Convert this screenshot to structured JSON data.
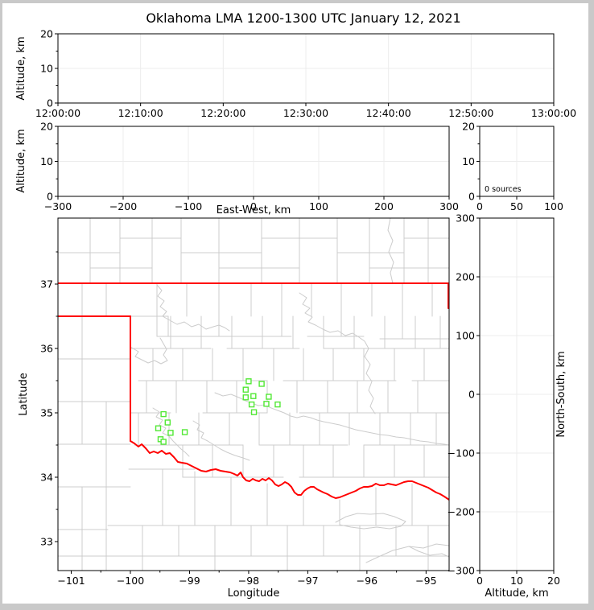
{
  "figure": {
    "title": "Oklahoma LMA 1200-1300 UTC January 12, 2021",
    "background": "#ffffff",
    "frame_color": "#c9c9c9"
  },
  "colors": {
    "state_border": "#ff0000",
    "county_line": "#cccccc",
    "river_line": "#cccccc",
    "station": "#52e835",
    "grid": "#ececec",
    "axis": "#000000"
  },
  "chart_data": [
    {
      "id": "time_height",
      "type": "scatter",
      "xlabel": "",
      "ylabel": "Altitude, km",
      "x_tick_labels": [
        "12:00:00",
        "12:10:00",
        "12:20:00",
        "12:30:00",
        "12:40:00",
        "12:50:00",
        "13:00:00"
      ],
      "ylim": [
        0,
        20
      ],
      "yticks": [
        0,
        10,
        20
      ],
      "points": []
    },
    {
      "id": "ew_height",
      "type": "scatter",
      "xlabel": "East-West, km",
      "ylabel": "Altitude, km",
      "xlim": [
        -300,
        300
      ],
      "xticks": [
        -300,
        -200,
        -100,
        0,
        100,
        200,
        300
      ],
      "ylim": [
        0,
        20
      ],
      "yticks": [
        0,
        10,
        20
      ],
      "points": []
    },
    {
      "id": "alt_histogram",
      "type": "line",
      "annotation": "0 sources",
      "xlim": [
        0,
        100
      ],
      "xticks": [
        0,
        50,
        100
      ],
      "ylim": [
        0,
        20
      ],
      "yticks": [
        0,
        10,
        20
      ],
      "points": []
    },
    {
      "id": "plan_map",
      "type": "scatter",
      "xlabel": "Longitude",
      "ylabel": "Latitude",
      "xlim": [
        -101.225,
        -94.61
      ],
      "xticks": [
        -101,
        -100,
        -99,
        -98,
        -97,
        -96,
        -95
      ],
      "ylim": [
        32.55,
        38.025
      ],
      "yticks": [
        33,
        34,
        35,
        36,
        37
      ],
      "stations_lonlat": [
        [
          -98.0,
          35.49
        ],
        [
          -97.78,
          35.45
        ],
        [
          -98.05,
          35.36
        ],
        [
          -97.92,
          35.26
        ],
        [
          -98.05,
          35.24
        ],
        [
          -97.66,
          35.25
        ],
        [
          -97.95,
          35.13
        ],
        [
          -97.7,
          35.14
        ],
        [
          -97.51,
          35.13
        ],
        [
          -97.91,
          35.01
        ],
        [
          -99.44,
          34.98
        ],
        [
          -99.37,
          34.85
        ],
        [
          -99.53,
          34.76
        ],
        [
          -99.32,
          34.69
        ],
        [
          -99.08,
          34.7
        ],
        [
          -99.49,
          34.59
        ],
        [
          -99.44,
          34.55
        ]
      ]
    },
    {
      "id": "ns_height",
      "type": "scatter",
      "xlabel": "Altitude, km",
      "ylabel": "North-South, km",
      "xlim": [
        0,
        20
      ],
      "xticks": [
        0,
        10,
        20
      ],
      "ylim": [
        -300,
        300
      ],
      "yticks": [
        -300,
        -200,
        -100,
        0,
        100,
        200,
        300
      ],
      "points": []
    }
  ],
  "map_geometry": {
    "state_border": [
      [
        0,
        81,
        486,
        81
      ],
      [
        485,
        81,
        485,
        112
      ],
      [
        0,
        122,
        90,
        122
      ],
      [
        90,
        122,
        90,
        277
      ]
    ],
    "red_river": [
      90,
      277,
      95,
      280,
      100,
      284,
      104,
      281,
      109,
      286,
      114,
      292,
      119,
      290,
      124,
      292,
      129,
      289,
      134,
      293,
      139,
      292,
      144,
      297,
      149,
      303,
      154,
      304,
      160,
      305,
      166,
      308,
      172,
      311,
      178,
      314,
      184,
      315,
      190,
      313,
      196,
      312,
      202,
      314,
      208,
      315,
      214,
      316,
      219,
      318,
      223,
      320,
      227,
      316,
      230,
      322,
      234,
      326,
      238,
      327,
      242,
      324,
      246,
      326,
      250,
      327,
      254,
      324,
      258,
      326,
      262,
      323,
      266,
      326,
      270,
      331,
      274,
      333,
      278,
      331,
      282,
      328,
      286,
      330,
      290,
      334,
      294,
      341,
      298,
      344,
      302,
      344,
      306,
      339,
      310,
      336,
      314,
      334,
      318,
      334,
      322,
      337,
      326,
      339,
      330,
      341,
      335,
      343,
      340,
      346,
      345,
      348,
      350,
      347,
      355,
      345,
      360,
      343,
      365,
      341,
      370,
      339,
      375,
      336,
      380,
      334,
      385,
      334,
      390,
      333,
      395,
      330,
      400,
      332,
      405,
      332,
      410,
      330,
      415,
      331,
      420,
      332,
      425,
      330,
      430,
      328,
      435,
      327,
      440,
      327,
      445,
      329,
      450,
      331,
      455,
      333,
      460,
      335,
      465,
      338,
      470,
      341,
      475,
      343,
      480,
      346,
      486,
      350
    ],
    "counties": [
      [
        40,
        0,
        40,
        81
      ],
      [
        77,
        0,
        77,
        81
      ],
      [
        117,
        0,
        117,
        81
      ],
      [
        153,
        0,
        153,
        81
      ],
      [
        200,
        0,
        200,
        81
      ],
      [
        253,
        0,
        253,
        81
      ],
      [
        300,
        0,
        300,
        81
      ],
      [
        347,
        0,
        347,
        81
      ],
      [
        387,
        0,
        387,
        81
      ],
      [
        430,
        0,
        430,
        81
      ],
      [
        460,
        0,
        460,
        81
      ],
      [
        77,
        25,
        153,
        25
      ],
      [
        253,
        25,
        347,
        25
      ],
      [
        430,
        25,
        486,
        25
      ],
      [
        0,
        43,
        77,
        43
      ],
      [
        153,
        43,
        253,
        43
      ],
      [
        347,
        43,
        430,
        43
      ],
      [
        40,
        62,
        117,
        62
      ],
      [
        200,
        62,
        300,
        62
      ],
      [
        387,
        62,
        486,
        62
      ],
      [
        413,
        0,
        410,
        15,
        416,
        28,
        411,
        42,
        417,
        55,
        413,
        68,
        416,
        81
      ],
      [
        30,
        81,
        30,
        122
      ],
      [
        60,
        81,
        60,
        122
      ],
      [
        30,
        122,
        30,
        281
      ],
      [
        60,
        228,
        60,
        438
      ],
      [
        30,
        334,
        30,
        438
      ],
      [
        0,
        175,
        90,
        175
      ],
      [
        0,
        228,
        90,
        228
      ],
      [
        0,
        281,
        90,
        281
      ],
      [
        0,
        334,
        90,
        334
      ],
      [
        0,
        387,
        62,
        387
      ],
      [
        0,
        420,
        90,
        420
      ],
      [
        90,
        122,
        137,
        122
      ],
      [
        137,
        122,
        137,
        147
      ],
      [
        123,
        147,
        290,
        147
      ],
      [
        310,
        147,
        380,
        147
      ],
      [
        400,
        150,
        486,
        150
      ],
      [
        90,
        162,
        190,
        162
      ],
      [
        210,
        162,
        300,
        162
      ],
      [
        330,
        162,
        486,
        162
      ],
      [
        100,
        202,
        260,
        202
      ],
      [
        280,
        202,
        420,
        202
      ],
      [
        440,
        202,
        486,
        202
      ],
      [
        90,
        242,
        140,
        242
      ],
      [
        180,
        242,
        260,
        242
      ],
      [
        300,
        242,
        486,
        242
      ],
      [
        95,
        282,
        230,
        282
      ],
      [
        250,
        282,
        360,
        282
      ],
      [
        380,
        282,
        486,
        282
      ],
      [
        155,
        322,
        280,
        322
      ],
      [
        300,
        322,
        486,
        322
      ],
      [
        123,
        81,
        123,
        147
      ],
      [
        160,
        81,
        160,
        122
      ],
      [
        200,
        81,
        200,
        147
      ],
      [
        240,
        81,
        240,
        122
      ],
      [
        278,
        81,
        278,
        147
      ],
      [
        315,
        81,
        315,
        122
      ],
      [
        352,
        81,
        352,
        147
      ],
      [
        390,
        81,
        390,
        122
      ],
      [
        428,
        81,
        428,
        150
      ],
      [
        465,
        81,
        465,
        122
      ],
      [
        140,
        122,
        140,
        162
      ],
      [
        178,
        122,
        178,
        162
      ],
      [
        216,
        122,
        216,
        162
      ],
      [
        254,
        122,
        254,
        162
      ],
      [
        292,
        122,
        292,
        162
      ],
      [
        330,
        122,
        330,
        162
      ],
      [
        368,
        122,
        368,
        162
      ],
      [
        406,
        122,
        406,
        162
      ],
      [
        444,
        122,
        444,
        162
      ],
      [
        475,
        122,
        475,
        162
      ],
      [
        118,
        162,
        118,
        202
      ],
      [
        155,
        162,
        155,
        202
      ],
      [
        192,
        162,
        192,
        202
      ],
      [
        230,
        162,
        230,
        202
      ],
      [
        268,
        162,
        268,
        202
      ],
      [
        305,
        162,
        305,
        202
      ],
      [
        342,
        162,
        342,
        202
      ],
      [
        380,
        162,
        380,
        202
      ],
      [
        418,
        162,
        418,
        202
      ],
      [
        455,
        162,
        455,
        202
      ],
      [
        110,
        202,
        110,
        242
      ],
      [
        147,
        202,
        147,
        242
      ],
      [
        185,
        202,
        185,
        242
      ],
      [
        222,
        202,
        222,
        242
      ],
      [
        260,
        202,
        260,
        242
      ],
      [
        297,
        202,
        297,
        242
      ],
      [
        335,
        202,
        335,
        242
      ],
      [
        372,
        202,
        372,
        242
      ],
      [
        410,
        202,
        410,
        242
      ],
      [
        447,
        202,
        447,
        242
      ],
      [
        100,
        242,
        100,
        282
      ],
      [
        138,
        242,
        138,
        282
      ],
      [
        175,
        242,
        175,
        282
      ],
      [
        213,
        242,
        213,
        282
      ],
      [
        250,
        242,
        250,
        282
      ],
      [
        288,
        242,
        288,
        282
      ],
      [
        325,
        242,
        325,
        282
      ],
      [
        362,
        242,
        362,
        282
      ],
      [
        400,
        242,
        400,
        282
      ],
      [
        438,
        242,
        438,
        282
      ],
      [
        470,
        242,
        470,
        282
      ],
      [
        155,
        282,
        155,
        322
      ],
      [
        192,
        282,
        192,
        322
      ],
      [
        230,
        282,
        230,
        322
      ],
      [
        268,
        282,
        268,
        322
      ],
      [
        305,
        282,
        305,
        322
      ],
      [
        342,
        282,
        342,
        322
      ],
      [
        380,
        282,
        380,
        322
      ],
      [
        418,
        282,
        418,
        322
      ],
      [
        455,
        282,
        455,
        322
      ],
      [
        88,
        312,
        170,
        312
      ],
      [
        130,
        312,
        130,
        382
      ],
      [
        170,
        315,
        170,
        382
      ],
      [
        215,
        322,
        215,
        382
      ],
      [
        260,
        330,
        260,
        382
      ],
      [
        305,
        345,
        305,
        382
      ],
      [
        350,
        350,
        350,
        382
      ],
      [
        395,
        335,
        395,
        382
      ],
      [
        440,
        330,
        440,
        382
      ],
      [
        62,
        382,
        486,
        382
      ],
      [
        90,
        420,
        486,
        420
      ],
      [
        105,
        382,
        105,
        438
      ],
      [
        150,
        382,
        150,
        420
      ],
      [
        195,
        382,
        195,
        438
      ],
      [
        240,
        382,
        240,
        420
      ],
      [
        285,
        382,
        285,
        438
      ],
      [
        330,
        382,
        330,
        420
      ],
      [
        375,
        382,
        375,
        438
      ],
      [
        420,
        382,
        420,
        420
      ],
      [
        460,
        382,
        460,
        438
      ]
    ],
    "rivers": [
      [
        123,
        83,
        129,
        90,
        124,
        97,
        132,
        103,
        127,
        110,
        135,
        116,
        130,
        122,
        139,
        127,
        148,
        132,
        157,
        129,
        166,
        135,
        175,
        132,
        184,
        138,
        193,
        135,
        200,
        133,
        207,
        136,
        213,
        140
      ],
      [
        300,
        93,
        309,
        99,
        304,
        107,
        313,
        112,
        307,
        118,
        316,
        123,
        311,
        129,
        320,
        133,
        329,
        138,
        338,
        142,
        348,
        140,
        357,
        146,
        366,
        143,
        374,
        148,
        381,
        153,
        386,
        162,
        381,
        172,
        388,
        182,
        383,
        193,
        390,
        203,
        386,
        214,
        392,
        224,
        388,
        234,
        394,
        243
      ],
      [
        195,
        217,
        205,
        221,
        215,
        219,
        225,
        223,
        233,
        227,
        241,
        230,
        249,
        233,
        257,
        232,
        265,
        236,
        273,
        239,
        281,
        242,
        289,
        246,
        297,
        248,
        305,
        246,
        314,
        248,
        322,
        251,
        330,
        253,
        340,
        255,
        350,
        257,
        360,
        260,
        370,
        263,
        380,
        265,
        390,
        267,
        400,
        269,
        410,
        270,
        420,
        272,
        430,
        273,
        440,
        275,
        450,
        277,
        460,
        278,
        470,
        280,
        480,
        281,
        486,
        282
      ],
      [
        118,
        236,
        126,
        241,
        122,
        247,
        130,
        251,
        126,
        257,
        134,
        261,
        130,
        267,
        138,
        271,
        143,
        277,
        148,
        282,
        153,
        287,
        158,
        291,
        163,
        296
      ],
      [
        168,
        252,
        176,
        257,
        173,
        263,
        181,
        267,
        178,
        273,
        186,
        277,
        194,
        282,
        202,
        287,
        210,
        291,
        220,
        295,
        230,
        298,
        238,
        301
      ],
      [
        345,
        378,
        358,
        371,
        372,
        367,
        388,
        368,
        404,
        367,
        418,
        371,
        432,
        377,
        426,
        383,
        412,
        386,
        396,
        384,
        380,
        386,
        364,
        384,
        350,
        381
      ],
      [
        383,
        428,
        398,
        421,
        416,
        413,
        436,
        408,
        454,
        410,
        470,
        405,
        486,
        407
      ],
      [
        436,
        408,
        448,
        414,
        462,
        419,
        477,
        417,
        486,
        421
      ],
      [
        90,
        160,
        100,
        166,
        96,
        172,
        104,
        176,
        112,
        180,
        120,
        177,
        128,
        181,
        136,
        177,
        131,
        170,
        135,
        163,
        131,
        156,
        127,
        149
      ]
    ]
  }
}
